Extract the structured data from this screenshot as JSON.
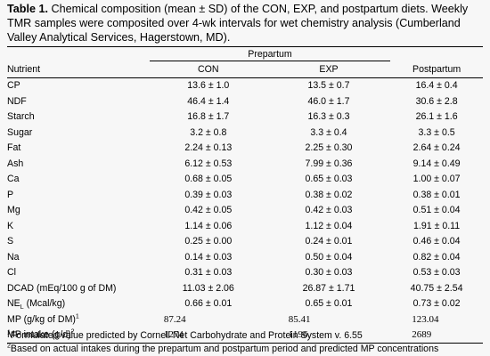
{
  "caption": {
    "label": "Table 1.",
    "text": " Chemical composition (mean ± SD) of the CON, EXP, and postpartum diets. Weekly TMR samples were composited over 4-wk intervals for wet chemistry analysis (Cumberland Valley Analytical Services, Hagerstown, MD)."
  },
  "table": {
    "group_header": "Prepartum",
    "headers": [
      "Nutrient",
      "CON",
      "EXP",
      "Postpartum"
    ],
    "rows": [
      [
        "CP",
        "13.6 ± 1.0",
        "13.5 ± 0.7",
        "16.4 ± 0.4"
      ],
      [
        "NDF",
        "46.4 ± 1.4",
        "46.0 ± 1.7",
        "30.6 ± 2.8"
      ],
      [
        "Starch",
        "16.8 ± 1.7",
        "16.3 ± 0.3",
        "26.1 ± 1.6"
      ],
      [
        "Sugar",
        "3.2 ± 0.8",
        "3.3 ± 0.4",
        "3.3 ± 0.5"
      ],
      [
        "Fat",
        "2.24 ± 0.13",
        "2.25 ± 0.30",
        "2.64 ± 0.24"
      ],
      [
        "Ash",
        "6.12 ± 0.53",
        "7.99 ± 0.36",
        "9.14 ± 0.49"
      ],
      [
        "Ca",
        "0.68 ± 0.05",
        "0.65 ± 0.03",
        "1.00 ± 0.07"
      ],
      [
        "P",
        "0.39 ± 0.03",
        "0.38 ± 0.02",
        "0.38 ± 0.01"
      ],
      [
        "Mg",
        "0.42 ± 0.05",
        "0.42 ± 0.03",
        "0.51 ± 0.04"
      ],
      [
        "K",
        "1.14 ± 0.06",
        "1.12 ± 0.04",
        "1.91 ± 0.11"
      ],
      [
        "S",
        "0.25 ± 0.00",
        "0.24 ± 0.01",
        "0.46 ± 0.04"
      ],
      [
        "Na",
        "0.14 ± 0.03",
        "0.50 ± 0.04",
        "0.82 ± 0.04"
      ],
      [
        "Cl",
        "0.31 ± 0.03",
        "0.30 ± 0.03",
        "0.53 ± 0.03"
      ],
      [
        "DCAD (mEq/100 g of DM)",
        "11.03 ± 2.06",
        "26.87 ± 1.71",
        "40.75 ± 2.54"
      ]
    ],
    "nel": {
      "label_main": "NE",
      "label_sub": "L",
      "label_rest": " (Mcal/kg)",
      "con": "0.66 ± 0.01",
      "exp": "0.65 ± 0.01",
      "post": "0.73 ± 0.02"
    },
    "mp": {
      "label": "MP (g/kg of DM)",
      "sup": "1",
      "con": "87.24",
      "exp": "85.41",
      "post": "123.04"
    },
    "mp_intake": {
      "label": "MP intake (g/d)",
      "sup": "2",
      "con": "1274",
      "exp": "1196",
      "post": "2689"
    }
  },
  "footnotes": [
    {
      "sup": "1",
      "text": "Formulated value predicted by Cornell Net Carbohydrate and Protein System v. 6.55"
    },
    {
      "sup": "2",
      "text": "Based on actual intakes during the prepartum and postpartum period and predicted MP concentrations"
    }
  ]
}
